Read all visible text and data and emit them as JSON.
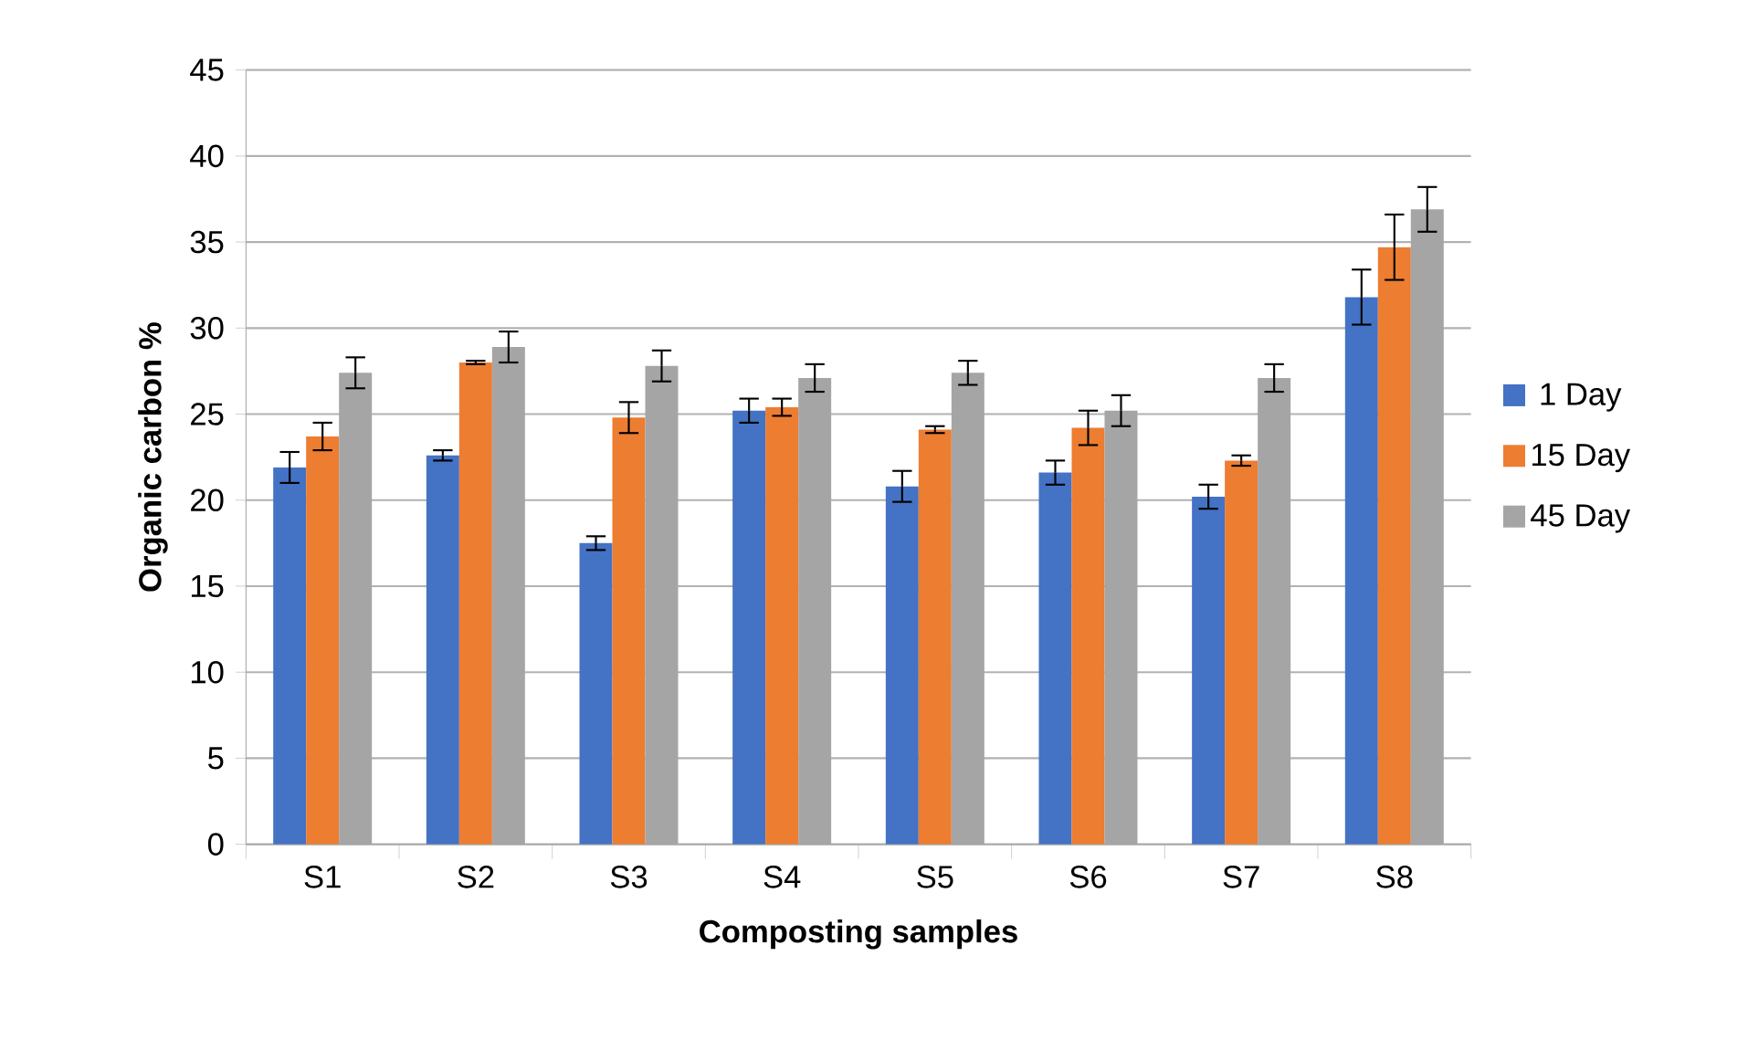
{
  "chart_data": {
    "type": "bar",
    "xlabel": "Composting samples",
    "ylabel": "Organic carbon %",
    "categories": [
      "S1",
      "S2",
      "S3",
      "S4",
      "S5",
      "S6",
      "S7",
      "S8"
    ],
    "series": [
      {
        "name": "1 Day",
        "color": "#4472c4",
        "values": [
          21.9,
          22.6,
          17.5,
          25.2,
          20.8,
          21.6,
          20.2,
          31.8
        ],
        "errors": [
          0.9,
          0.3,
          0.4,
          0.7,
          0.9,
          0.7,
          0.7,
          1.6
        ]
      },
      {
        "name": "15 Day",
        "color": "#ed7d31",
        "values": [
          23.7,
          28.0,
          24.8,
          25.4,
          24.1,
          24.2,
          22.3,
          34.7
        ],
        "errors": [
          0.8,
          0.1,
          0.9,
          0.5,
          0.2,
          1.0,
          0.3,
          1.9
        ]
      },
      {
        "name": "45 Day",
        "color": "#a5a5a5",
        "values": [
          27.4,
          28.9,
          27.8,
          27.1,
          27.4,
          25.2,
          27.1,
          36.9
        ],
        "errors": [
          0.9,
          0.9,
          0.9,
          0.8,
          0.7,
          0.9,
          0.8,
          1.3
        ]
      }
    ],
    "ylim": [
      0,
      45
    ],
    "yticks": [
      0,
      5,
      10,
      15,
      20,
      25,
      30,
      35,
      40,
      45
    ],
    "grid": "y",
    "legend": "right"
  }
}
